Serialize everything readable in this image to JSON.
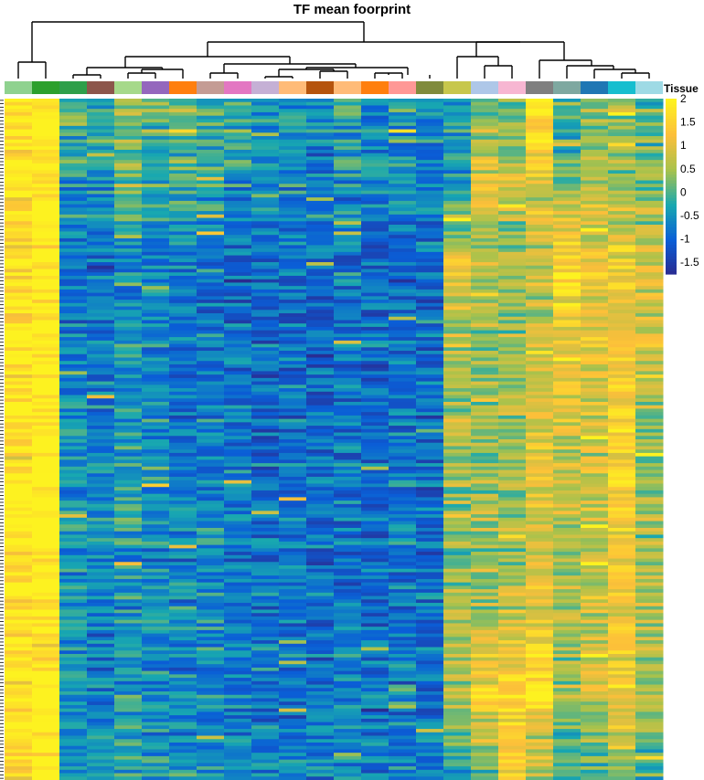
{
  "chart_data": {
    "type": "heatmap",
    "title": "TF mean foorprint",
    "annotation_label": "Tissue",
    "colorbar": {
      "ticks": [
        "2",
        "1.5",
        "1",
        "0.5",
        "0",
        "-0.5",
        "-1",
        "-1.5"
      ],
      "tick_values": [
        2,
        1.5,
        1,
        0.5,
        0,
        -0.5,
        -1,
        -1.5
      ],
      "range": [
        -1.75,
        2
      ],
      "colors": [
        "#2b2a8f",
        "#0a5ed7",
        "#18a8b0",
        "#a8c24c",
        "#fcbf3a",
        "#fdf220"
      ]
    },
    "tissue_colors": [
      "#8fd28f",
      "#2ca02c",
      "#2e9f4a",
      "#8c564b",
      "#a6d98a",
      "#9467bd",
      "#ff7f0e",
      "#c49c94",
      "#e377c2",
      "#c5b0d5",
      "#ffbb78",
      "#b5540e",
      "#ffbb78",
      "#ff7f0e",
      "#ff9896",
      "#808b3c",
      "#c7c74c",
      "#aec7e8",
      "#f7b6d2",
      "#7f7f7f",
      "#7ea8a0",
      "#1f77b4",
      "#17becf",
      "#9edae5"
    ],
    "n_columns": 24,
    "n_rows": 200,
    "column_profiles": [
      [
        1.9,
        1.8,
        1.6,
        1.8,
        1.9,
        1.9,
        1.8,
        1.8,
        1.6
      ],
      [
        2.0,
        2.0,
        2.0,
        2.0,
        2.0,
        2.0,
        2.0,
        2.0,
        2.0
      ],
      [
        0.1,
        -0.4,
        -0.7,
        -0.6,
        -0.5,
        -0.4,
        -0.5,
        -0.5,
        -0.2
      ],
      [
        -0.2,
        -0.5,
        -0.8,
        -0.7,
        -0.6,
        -0.5,
        -0.6,
        -0.7,
        -0.3
      ],
      [
        0.6,
        0.1,
        -0.6,
        -0.4,
        -0.3,
        -0.3,
        -0.5,
        -0.4,
        -0.2
      ],
      [
        0.3,
        -0.2,
        -0.7,
        -0.6,
        -0.5,
        -0.5,
        -0.6,
        -0.5,
        -0.3
      ],
      [
        0.2,
        -0.2,
        -0.8,
        -0.7,
        -0.7,
        -0.6,
        -0.7,
        -0.6,
        -0.4
      ],
      [
        0.0,
        -0.3,
        -0.8,
        -0.7,
        -0.6,
        -0.6,
        -0.5,
        -0.6,
        -0.3
      ],
      [
        -0.1,
        -0.4,
        -0.9,
        -0.8,
        -0.8,
        -0.7,
        -0.7,
        -0.7,
        -0.4
      ],
      [
        -0.5,
        -0.6,
        -0.9,
        -0.9,
        -0.9,
        -0.8,
        -0.8,
        -0.8,
        -0.5
      ],
      [
        -0.3,
        -0.5,
        -0.9,
        -0.8,
        -0.8,
        -0.8,
        -0.8,
        -0.7,
        -0.5
      ],
      [
        -0.6,
        -0.7,
        -0.9,
        -0.9,
        -0.9,
        -0.9,
        -0.9,
        -0.8,
        -0.6
      ],
      [
        -0.2,
        -0.5,
        -0.9,
        -0.8,
        -0.8,
        -0.8,
        -0.8,
        -0.7,
        -0.5
      ],
      [
        -0.6,
        -0.7,
        -0.9,
        -0.9,
        -0.9,
        -0.9,
        -0.9,
        -0.8,
        -0.6
      ],
      [
        -0.3,
        -0.5,
        -0.9,
        -0.8,
        -0.8,
        -0.7,
        -0.7,
        -0.7,
        -0.5
      ],
      [
        -0.7,
        -0.7,
        -0.9,
        -0.9,
        -0.9,
        -0.9,
        -0.9,
        -0.8,
        -0.6
      ],
      [
        -0.2,
        -0.4,
        1.2,
        0.6,
        0.5,
        0.2,
        0.5,
        0.7,
        -0.2
      ],
      [
        0.0,
        1.2,
        0.5,
        0.5,
        0.4,
        0.5,
        0.5,
        1.4,
        0.0
      ],
      [
        0.2,
        0.6,
        0.5,
        0.5,
        0.5,
        0.4,
        0.7,
        1.5,
        1.6
      ],
      [
        1.8,
        1.0,
        0.7,
        0.8,
        1.0,
        1.0,
        1.0,
        1.8,
        0.6
      ],
      [
        -0.3,
        0.3,
        1.6,
        1.2,
        0.8,
        0.6,
        0.6,
        0.5,
        -0.2
      ],
      [
        0.2,
        0.8,
        1.1,
        1.1,
        0.9,
        0.8,
        0.8,
        0.9,
        -0.1
      ],
      [
        0.3,
        0.5,
        1.3,
        1.3,
        1.4,
        1.2,
        1.2,
        1.3,
        0.5
      ],
      [
        0.1,
        0.4,
        0.9,
        0.8,
        0.4,
        0.5,
        0.7,
        0.4,
        -0.1
      ]
    ]
  }
}
